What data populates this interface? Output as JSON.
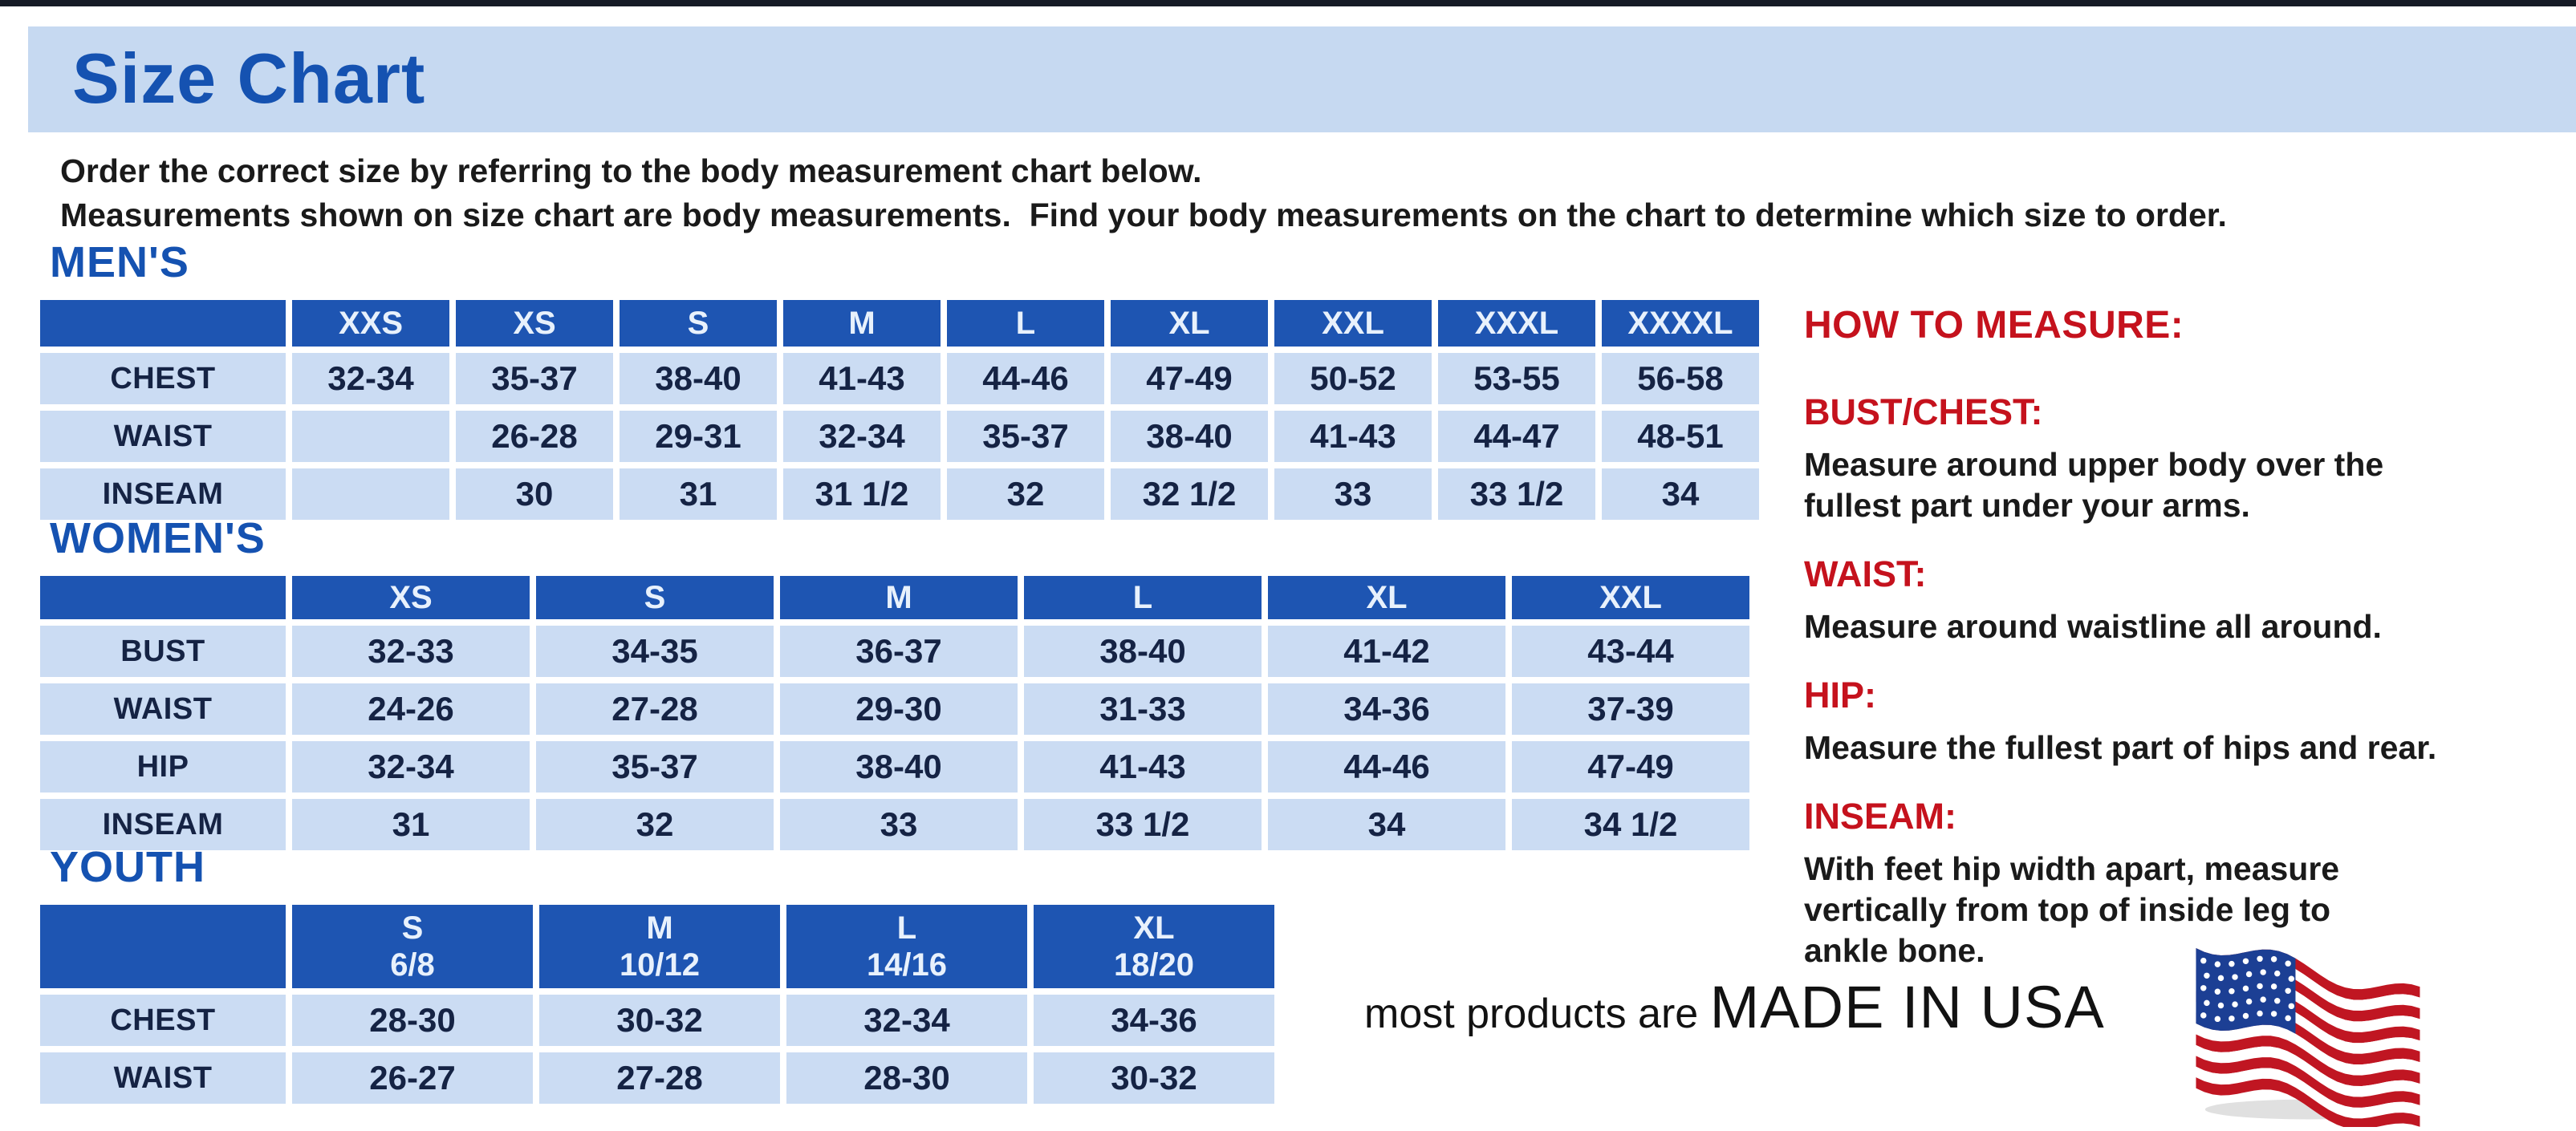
{
  "page": {
    "title": "Size Chart",
    "intro_line1": "Order the correct size by referring to the body measurement chart below.",
    "intro_line2": "Measurements shown on size chart are body measurements.  Find your body measurements on the chart to determine which size to order."
  },
  "colors": {
    "title_blue": "#1552b1",
    "band_bg": "#c6d9f1",
    "table_header_bg": "#1e55b2",
    "table_header_text": "#e8f1fc",
    "table_cell_bg": "#cbdcf3",
    "table_cell_text": "#152344",
    "heading_red": "#c5121d",
    "body_text": "#1a1a1a"
  },
  "tables": [
    {
      "id": "mens",
      "heading": "MEN'S",
      "columns": [
        [
          "XXS"
        ],
        [
          "XS"
        ],
        [
          "S"
        ],
        [
          "M"
        ],
        [
          "L"
        ],
        [
          "XL"
        ],
        [
          "XXL"
        ],
        [
          "XXXL"
        ],
        [
          "XXXXL"
        ]
      ],
      "rows": [
        {
          "label": "CHEST",
          "values": [
            "32-34",
            "35-37",
            "38-40",
            "41-43",
            "44-46",
            "47-49",
            "50-52",
            "53-55",
            "56-58"
          ]
        },
        {
          "label": "WAIST",
          "values": [
            "",
            "26-28",
            "29-31",
            "32-34",
            "35-37",
            "38-40",
            "41-43",
            "44-47",
            "48-51"
          ]
        },
        {
          "label": "INSEAM",
          "values": [
            "",
            "30",
            "31",
            "31 1/2",
            "32",
            "32 1/2",
            "33",
            "33 1/2",
            "34"
          ]
        }
      ]
    },
    {
      "id": "womens",
      "heading": "WOMEN'S",
      "columns": [
        [
          "XS"
        ],
        [
          "S"
        ],
        [
          "M"
        ],
        [
          "L"
        ],
        [
          "XL"
        ],
        [
          "XXL"
        ]
      ],
      "rows": [
        {
          "label": "BUST",
          "values": [
            "32-33",
            "34-35",
            "36-37",
            "38-40",
            "41-42",
            "43-44"
          ]
        },
        {
          "label": "WAIST",
          "values": [
            "24-26",
            "27-28",
            "29-30",
            "31-33",
            "34-36",
            "37-39"
          ]
        },
        {
          "label": "HIP",
          "values": [
            "32-34",
            "35-37",
            "38-40",
            "41-43",
            "44-46",
            "47-49"
          ]
        },
        {
          "label": "INSEAM",
          "values": [
            "31",
            "32",
            "33",
            "33 1/2",
            "34",
            "34 1/2"
          ]
        }
      ]
    },
    {
      "id": "youth",
      "heading": "YOUTH",
      "columns": [
        [
          "S",
          "6/8"
        ],
        [
          "M",
          "10/12"
        ],
        [
          "L",
          "14/16"
        ],
        [
          "XL",
          "18/20"
        ]
      ],
      "rows": [
        {
          "label": "CHEST",
          "values": [
            "28-30",
            "30-32",
            "32-34",
            "34-36"
          ]
        },
        {
          "label": "WAIST",
          "values": [
            "26-27",
            "27-28",
            "28-30",
            "30-32"
          ]
        }
      ]
    }
  ],
  "how_to_measure": {
    "title": "HOW TO MEASURE:",
    "items": [
      {
        "label": "BUST/CHEST:",
        "text": "Measure around upper body over the\nfullest part under your arms."
      },
      {
        "label": "WAIST:",
        "text": "Measure around waistline all around."
      },
      {
        "label": "HIP:",
        "text": "Measure the fullest part of hips and rear."
      },
      {
        "label": "INSEAM:",
        "text": "With feet hip width apart, measure\nvertically from top of inside leg to\nankle bone."
      }
    ]
  },
  "footer": {
    "prefix": "most products are ",
    "emphasis": "MADE IN USA",
    "flag_icon": "us-flag-icon",
    "flag_colors": {
      "red": "#c01622",
      "blue": "#1c3f94",
      "white": "#ffffff"
    }
  }
}
